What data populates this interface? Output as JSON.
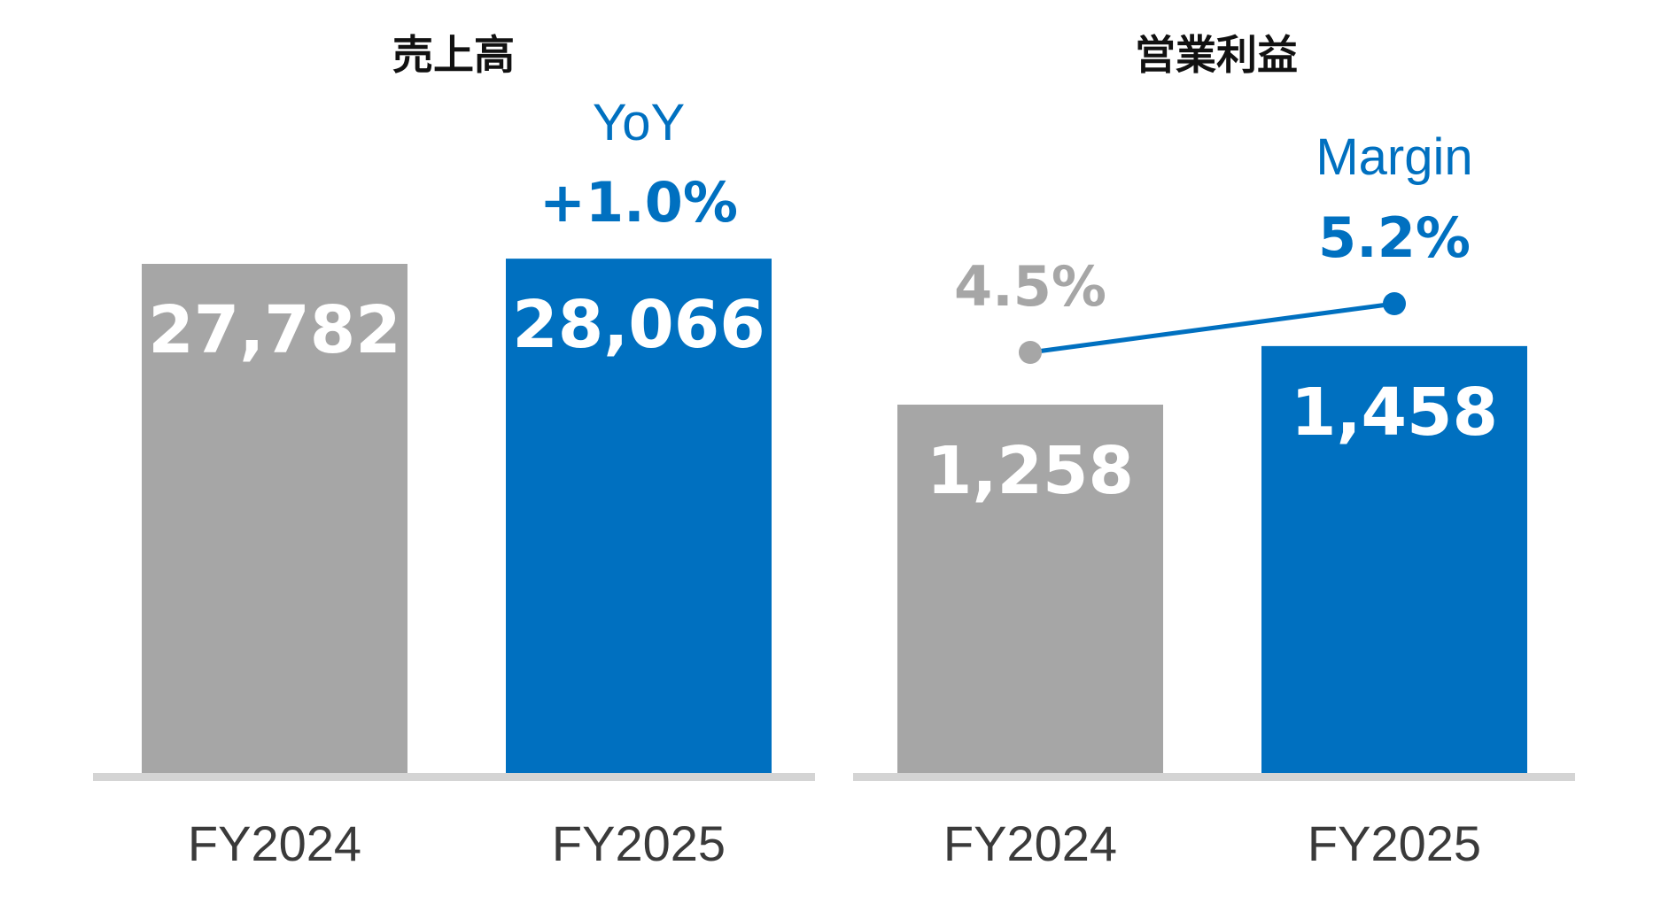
{
  "colors": {
    "prior": "#a6a6a6",
    "current": "#0070c0",
    "baseline": "#d4d4d4"
  },
  "chart_data": [
    {
      "type": "bar",
      "title": "売上高",
      "categories": [
        "FY2024",
        "FY2025"
      ],
      "values": [
        27782,
        28066
      ],
      "value_labels": [
        "27,782",
        "28,066"
      ],
      "annotation": {
        "label": "YoY",
        "value": "+1.0%"
      }
    },
    {
      "type": "bar",
      "title": "営業利益",
      "categories": [
        "FY2024",
        "FY2025"
      ],
      "values": [
        1258,
        1458
      ],
      "value_labels": [
        "1,258",
        "1,458"
      ],
      "overlay_line": {
        "name": "Margin",
        "values": [
          4.5,
          5.2
        ],
        "value_labels": [
          "4.5%",
          "5.2%"
        ]
      }
    }
  ]
}
